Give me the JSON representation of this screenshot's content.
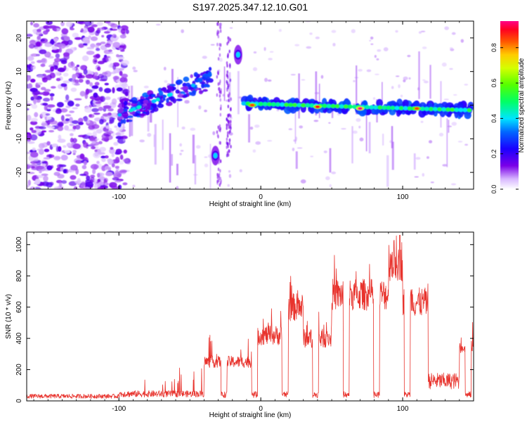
{
  "title": "S197.2025.347.12.10.G01",
  "chart_data": [
    {
      "type": "heatmap",
      "xlabel": "Height of straight line (km)",
      "ylabel": "Frequency (Hz)",
      "xlim": [
        -165,
        150
      ],
      "ylim": [
        -25,
        25
      ],
      "xticks": [
        -100,
        0,
        100
      ],
      "yticks": [
        -20,
        -10,
        0,
        10,
        20
      ],
      "colorbar_label": "Normalized spectral amplitude",
      "colorbar_range": [
        0,
        0.95
      ],
      "colorbar_ticks": [
        0.0,
        0.2,
        0.4,
        0.6,
        0.8
      ],
      "features": [
        {
          "name": "noise-cloud",
          "x_range": [
            -165,
            -100
          ],
          "freq_range": [
            -25,
            25
          ],
          "amplitude": 0.1
        },
        {
          "name": "rising-track",
          "x_start": -100,
          "x_end": -35,
          "freq_start": -3,
          "freq_end": 8,
          "amplitude": 0.25
        },
        {
          "name": "high-blob",
          "x": -16,
          "freq": 15,
          "amplitude": 0.3
        },
        {
          "name": "low-blob",
          "x": -32,
          "freq": -15,
          "amplitude": 0.3
        },
        {
          "name": "flat-track",
          "x_start": -12,
          "x_end": 148,
          "freq_start": 0.5,
          "freq_end": -1.5,
          "amplitude": 0.5
        },
        {
          "name": "peak-1",
          "x": -6,
          "freq": 0,
          "amplitude": 0.85
        },
        {
          "name": "peak-2",
          "x": 40,
          "freq": -0.5,
          "amplitude": 0.9
        },
        {
          "name": "peak-3",
          "x": 70,
          "freq": -1,
          "amplitude": 0.95
        },
        {
          "name": "peak-4",
          "x": 110,
          "freq": -1,
          "amplitude": 0.85
        }
      ]
    },
    {
      "type": "line",
      "xlabel": "Height of straight line (km)",
      "ylabel": "SNR (10 * v/v)",
      "xlim": [
        -165,
        150
      ],
      "ylim": [
        0,
        1080
      ],
      "xticks": [
        -100,
        0,
        100
      ],
      "yticks": [
        0,
        200,
        400,
        600,
        800,
        1000
      ],
      "color": "#e8332d",
      "segments": [
        {
          "x": [
            -165,
            -100
          ],
          "snr": 40
        },
        {
          "x": [
            -100,
            -40
          ],
          "snr": 60
        },
        {
          "x": [
            -40,
            -5
          ],
          "snr": 250
        },
        {
          "x": [
            -5,
            15
          ],
          "snr": 420
        },
        {
          "x": [
            15,
            30
          ],
          "snr": 600
        },
        {
          "x": [
            30,
            50
          ],
          "snr": 400
        },
        {
          "x": [
            50,
            90
          ],
          "snr": 680
        },
        {
          "x": [
            90,
            100
          ],
          "snr": 900
        },
        {
          "x": [
            100,
            118
          ],
          "snr": 630
        },
        {
          "x": [
            118,
            140
          ],
          "snr": 150
        },
        {
          "x": [
            140,
            150
          ],
          "snr": 360
        }
      ],
      "peak": {
        "x": 98,
        "snr": 1060
      }
    }
  ]
}
